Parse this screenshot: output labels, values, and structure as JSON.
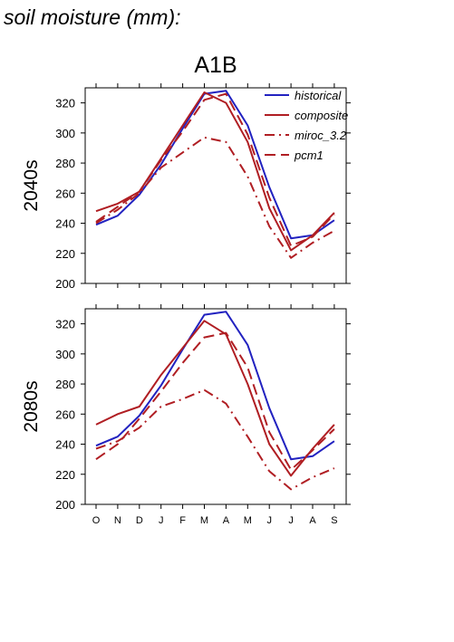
{
  "page_title": "soil moisture (mm):",
  "scenario_title": "A1B",
  "panels": [
    {
      "row_label": "2040s"
    },
    {
      "row_label": "2080s"
    }
  ],
  "colors": {
    "historical": "#2222c0",
    "composite": "#b01e23",
    "miroc_3.2": "#b01e23",
    "pcm1": "#b01e23"
  },
  "chart_data": [
    {
      "type": "line",
      "title": "A1B",
      "ylabel": "2040s",
      "ylim": [
        200,
        330
      ],
      "yticks": [
        200,
        220,
        240,
        260,
        280,
        300,
        320
      ],
      "categories": [
        "O",
        "N",
        "D",
        "J",
        "F",
        "M",
        "A",
        "M",
        "J",
        "J",
        "A",
        "S"
      ],
      "show_category_labels": false,
      "legend": "top-right",
      "series": [
        {
          "name": "historical",
          "dash": "solid",
          "values": [
            239,
            245,
            259,
            279,
            303,
            326,
            328,
            305,
            264,
            230,
            232,
            242
          ]
        },
        {
          "name": "composite",
          "dash": "solid",
          "values": [
            248,
            253,
            261,
            283,
            305,
            327,
            320,
            294,
            250,
            222,
            232,
            247
          ]
        },
        {
          "name": "miroc_3.2",
          "dash": "dashdot",
          "values": [
            240,
            249,
            260,
            277,
            287,
            297,
            294,
            271,
            238,
            217,
            227,
            235
          ]
        },
        {
          "name": "pcm1",
          "dash": "dash",
          "values": [
            241,
            251,
            261,
            282,
            301,
            322,
            326,
            299,
            257,
            225,
            231,
            246
          ]
        }
      ]
    },
    {
      "type": "line",
      "title": "",
      "ylabel": "2080s",
      "ylim": [
        200,
        330
      ],
      "yticks": [
        200,
        220,
        240,
        260,
        280,
        300,
        320
      ],
      "categories": [
        "O",
        "N",
        "D",
        "J",
        "F",
        "M",
        "A",
        "M",
        "J",
        "J",
        "A",
        "S"
      ],
      "show_category_labels": true,
      "series": [
        {
          "name": "historical",
          "dash": "solid",
          "values": [
            239,
            245,
            259,
            279,
            303,
            326,
            328,
            306,
            264,
            230,
            232,
            242
          ]
        },
        {
          "name": "composite",
          "dash": "solid",
          "values": [
            253,
            260,
            265,
            286,
            304,
            322,
            313,
            280,
            240,
            219,
            237,
            253
          ]
        },
        {
          "name": "miroc_3.2",
          "dash": "dashdot",
          "values": [
            237,
            242,
            251,
            265,
            270,
            276,
            267,
            245,
            222,
            210,
            218,
            224
          ]
        },
        {
          "name": "pcm1",
          "dash": "dash",
          "values": [
            230,
            240,
            257,
            275,
            294,
            311,
            314,
            291,
            248,
            223,
            236,
            250
          ]
        }
      ]
    }
  ]
}
